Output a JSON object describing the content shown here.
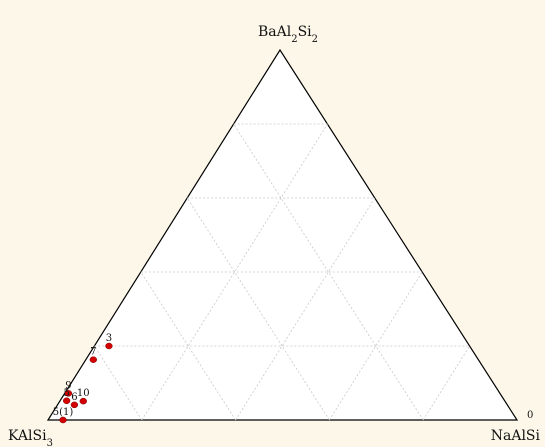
{
  "chart_data": {
    "type": "scatter",
    "subtype": "ternary",
    "vertices": {
      "top": {
        "base": "BaAl",
        "sub1": "2",
        "mid": "Si",
        "sub2": "2"
      },
      "bottom_left": {
        "base": "KAlSi",
        "sub1": "3",
        "mid": "",
        "sub2": ""
      },
      "bottom_right": {
        "base": "NaAlSi",
        "sub1": "",
        "mid": "",
        "sub2": ""
      }
    },
    "corner_tick": "0",
    "grid": true,
    "grid_divisions": 5,
    "point_color": "#d40000",
    "points": [
      {
        "label": "3",
        "BaAl2Si2": 0.2,
        "NaAlSi": 0.031,
        "KAlSi3": 0.769
      },
      {
        "label": "7",
        "BaAl2Si2": 0.163,
        "NaAlSi": 0.016,
        "KAlSi3": 0.821
      },
      {
        "label": "9",
        "BaAl2Si2": 0.072,
        "NaAlSi": 0.008,
        "KAlSi3": 0.92
      },
      {
        "label": "5",
        "BaAl2Si2": 0.052,
        "NaAlSi": 0.014,
        "KAlSi3": 0.934
      },
      {
        "label": "6",
        "BaAl2Si2": 0.041,
        "NaAlSi": 0.036,
        "KAlSi3": 0.923
      },
      {
        "label": "10",
        "BaAl2Si2": 0.051,
        "NaAlSi": 0.05,
        "KAlSi3": 0.899
      },
      {
        "label": "5(1)",
        "BaAl2Si2": 0.0,
        "NaAlSi": 0.032,
        "KAlSi3": 0.968
      }
    ]
  }
}
